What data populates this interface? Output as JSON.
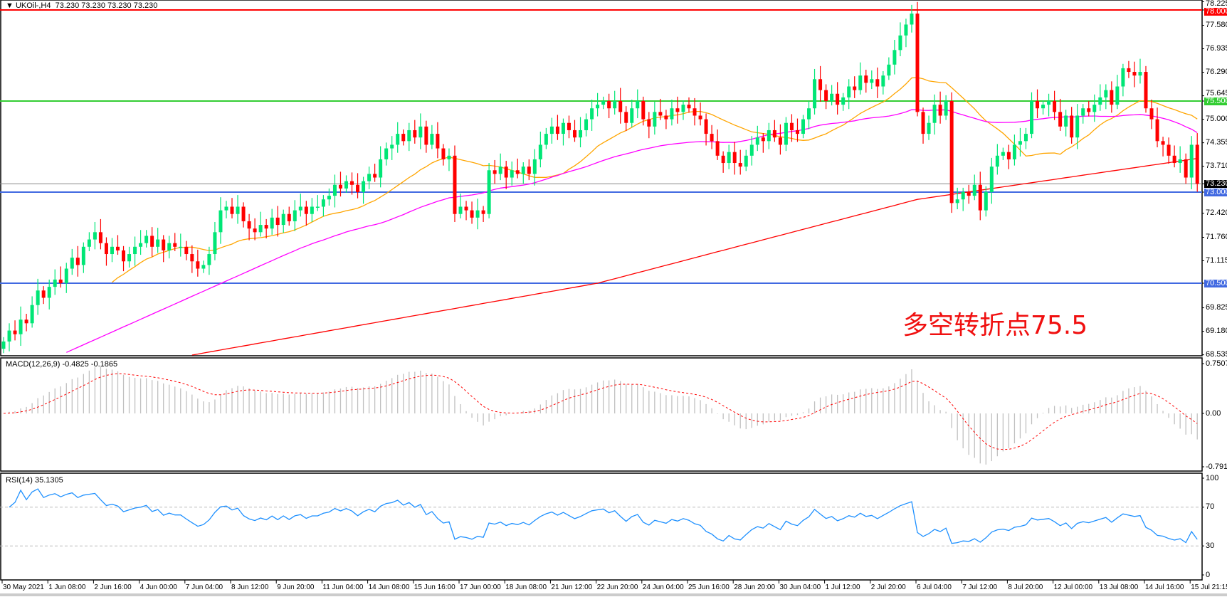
{
  "header": {
    "symbol": "UKOil-,H4",
    "ohlc": "73.230 73.230 73.230 73.230"
  },
  "annotation": "多空转折点75.5",
  "macd_label": "MACD(12,26,9) -0.4825 -0.1865",
  "rsi_label": "RSI(14) 35.1305",
  "colors": {
    "bull": "#00e676",
    "bear": "#ff0000",
    "ma_fast": "#ffa500",
    "ma_mid": "#ff00ff",
    "ma_slow": "#ff0000",
    "rsi": "#1e90ff",
    "macd_hist": "#c0c0c0",
    "macd_signal": "#ff0000"
  },
  "chart_data": {
    "type": "candlestick",
    "timeframe": "H4",
    "price_axis_ticks": [
      "78.225",
      "77.580",
      "76.935",
      "76.290",
      "75.645",
      "75.000",
      "74.355",
      "73.710",
      "72.420",
      "71.760",
      "71.115",
      "69.825",
      "69.180",
      "68.535"
    ],
    "ylim": [
      68.535,
      78.225
    ],
    "time_labels": [
      "30 May 2021",
      "1 Jun 08:00",
      "2 Jun 16:00",
      "4 Jun 00:00",
      "7 Jun 04:00",
      "8 Jun 12:00",
      "9 Jun 20:00",
      "11 Jun 04:00",
      "14 Jun 08:00",
      "15 Jun 16:00",
      "17 Jun 00:00",
      "18 Jun 08:00",
      "21 Jun 12:00",
      "22 Jun 20:00",
      "24 Jun 04:00",
      "25 Jun 16:00",
      "28 Jun 20:00",
      "30 Jun 04:00",
      "1 Jul 12:00",
      "2 Jul 20:00",
      "6 Jul 04:00",
      "7 Jul 12:00",
      "8 Jul 20:00",
      "12 Jul 00:00",
      "13 Jul 08:00",
      "14 Jul 16:00",
      "15 Jul 21:15"
    ],
    "closes": [
      68.9,
      69.2,
      69.1,
      69.5,
      69.4,
      69.9,
      70.3,
      70.1,
      70.4,
      70.6,
      70.5,
      70.9,
      71.2,
      71.0,
      71.5,
      71.7,
      71.9,
      71.6,
      71.3,
      71.5,
      71.4,
      71.1,
      71.3,
      71.5,
      71.6,
      71.8,
      71.5,
      71.7,
      71.4,
      71.6,
      71.5,
      71.5,
      71.3,
      71.1,
      70.9,
      71.0,
      71.3,
      71.9,
      72.5,
      72.6,
      72.4,
      72.6,
      72.2,
      72.0,
      71.9,
      72.1,
      72.0,
      72.3,
      72.1,
      72.4,
      72.2,
      72.5,
      72.6,
      72.4,
      72.6,
      72.6,
      72.8,
      72.9,
      73.2,
      73.1,
      73.3,
      73.2,
      73.0,
      73.3,
      73.5,
      73.4,
      73.9,
      74.2,
      74.3,
      74.6,
      74.4,
      74.7,
      74.5,
      74.8,
      74.3,
      74.6,
      74.2,
      73.9,
      74.0,
      72.4,
      72.6,
      72.5,
      72.3,
      72.5,
      72.4,
      73.6,
      73.5,
      73.7,
      73.4,
      73.6,
      73.5,
      73.7,
      73.5,
      73.9,
      74.3,
      74.6,
      74.8,
      74.6,
      74.9,
      74.7,
      74.5,
      74.7,
      75.0,
      75.3,
      75.4,
      75.5,
      75.3,
      75.5,
      75.2,
      74.9,
      75.3,
      75.5,
      75.0,
      74.8,
      75.2,
      75.1,
      75.0,
      75.3,
      75.2,
      75.4,
      75.3,
      75.1,
      75.0,
      74.6,
      74.4,
      74.0,
      73.8,
      74.1,
      73.8,
      73.7,
      74.0,
      74.3,
      74.5,
      74.4,
      74.7,
      74.5,
      74.3,
      74.9,
      74.7,
      74.6,
      75.0,
      75.3,
      76.1,
      75.8,
      75.5,
      75.7,
      75.4,
      75.6,
      75.9,
      75.8,
      76.2,
      76.0,
      76.1,
      75.9,
      76.2,
      76.5,
      76.9,
      77.3,
      77.6,
      77.9,
      75.2,
      74.6,
      74.9,
      75.4,
      75.1,
      75.5,
      72.7,
      72.8,
      73.0,
      72.9,
      73.2,
      72.5,
      73.0,
      73.7,
      74.0,
      74.1,
      73.9,
      74.3,
      74.4,
      74.6,
      75.5,
      75.3,
      75.4,
      75.5,
      75.2,
      74.8,
      75.1,
      74.5,
      75.1,
      75.3,
      75.2,
      75.4,
      75.6,
      75.8,
      75.4,
      75.9,
      76.4,
      76.3,
      76.2,
      76.3,
      75.3,
      75.0,
      74.4,
      74.3,
      74.0,
      73.8,
      73.9,
      73.4,
      74.3,
      73.23
    ],
    "moving_averages": {
      "fast_period": 20,
      "mid_period": 50
    },
    "slow_ma_points": [
      {
        "date": "7 Jun 04:00",
        "value": 68.5
      },
      {
        "date": "22 Jun 20:00",
        "value": 70.5
      },
      {
        "date": "6 Jul 04:00",
        "value": 72.8
      },
      {
        "date": "15 Jul 21:15",
        "value": 73.9
      }
    ],
    "hlines": [
      {
        "label": "78.000",
        "value": 78.0,
        "color": "#ff0000"
      },
      {
        "label": "75.500",
        "value": 75.5,
        "color": "#32cd32"
      },
      {
        "label": "73.000",
        "value": 73.0,
        "color": "#4169e1"
      },
      {
        "label": "70.500",
        "value": 70.5,
        "color": "#4169e1"
      }
    ],
    "bid": {
      "label": "73.230",
      "value": 73.23
    },
    "macd": {
      "axis_labels": [
        "0.7507",
        "0.00",
        "-0.7918"
      ],
      "ylim": [
        -0.7918,
        0.7507
      ]
    },
    "rsi": {
      "axis_labels": [
        "100",
        "70",
        "30",
        "0"
      ],
      "levels": [
        70,
        30
      ]
    }
  }
}
